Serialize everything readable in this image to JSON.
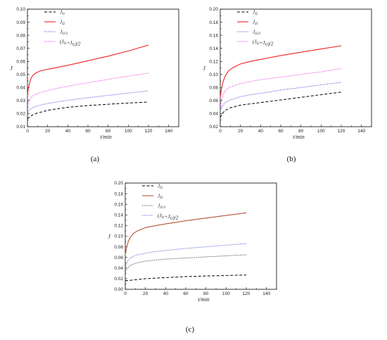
{
  "chart_data": [
    {
      "type": "line",
      "panel_label": "(a)",
      "xlabel": "t/min",
      "ylabel": "J",
      "xlim": [
        0,
        150
      ],
      "ylim": [
        0.01,
        0.1
      ],
      "xticks": [
        "0",
        "20",
        "40",
        "60",
        "80",
        "100",
        "120",
        "140"
      ],
      "yticks": [
        "0.01",
        "0.02",
        "0.03",
        "0.04",
        "0.05",
        "0.06",
        "0.07",
        "0.08",
        "0.09",
        "0.10"
      ],
      "legend_position": "top-left",
      "series": [
        {
          "name": "J_I1",
          "legend": [
            {
              "t": "J",
              "sub": "I1"
            }
          ],
          "color": "#000000",
          "style": "dash",
          "x": [
            0,
            2,
            5,
            10,
            20,
            30,
            40,
            60,
            80,
            100,
            120
          ],
          "y": [
            0.016,
            0.0175,
            0.019,
            0.0205,
            0.0225,
            0.0238,
            0.0248,
            0.0262,
            0.0272,
            0.0281,
            0.0289
          ]
        },
        {
          "name": "J_I2",
          "legend": [
            {
              "t": "J",
              "sub": "I2"
            }
          ],
          "color": "#ee2222",
          "style": "solid",
          "x": [
            0,
            1,
            3,
            5,
            8,
            12,
            20,
            30,
            40,
            60,
            80,
            100,
            120
          ],
          "y": [
            0.034,
            0.04,
            0.046,
            0.049,
            0.051,
            0.0525,
            0.054,
            0.0555,
            0.057,
            0.0605,
            0.064,
            0.068,
            0.0725
          ]
        },
        {
          "name": "J_I1/2",
          "legend": [
            {
              "t": "J",
              "sub": "I1/2"
            }
          ],
          "color": "#3333cc",
          "style": "dot",
          "x": [
            0,
            2,
            5,
            10,
            20,
            30,
            40,
            60,
            80,
            100,
            120
          ],
          "y": [
            0.021,
            0.023,
            0.0245,
            0.026,
            0.0278,
            0.029,
            0.0302,
            0.0322,
            0.034,
            0.0357,
            0.0375
          ]
        },
        {
          "name": "(J_I1+J_I2)/2",
          "legend": [
            {
              "t": "(J"
            },
            {
              "t": "",
              "sub": "I1"
            },
            {
              "t": "+J"
            },
            {
              "t": "",
              "sub": "I2"
            },
            {
              "t": ")/2"
            }
          ],
          "color": "#dd22dd",
          "style": "dot",
          "x": [
            0,
            1,
            3,
            5,
            10,
            20,
            30,
            40,
            60,
            80,
            100,
            120
          ],
          "y": [
            0.025,
            0.029,
            0.032,
            0.0335,
            0.0355,
            0.0378,
            0.0395,
            0.041,
            0.0437,
            0.0462,
            0.0487,
            0.051
          ]
        }
      ]
    },
    {
      "type": "line",
      "panel_label": "(b)",
      "xlabel": "t/min",
      "ylabel": "J",
      "xlim": [
        0,
        150
      ],
      "ylim": [
        0.02,
        0.2
      ],
      "xticks": [
        "0",
        "20",
        "40",
        "60",
        "80",
        "100",
        "120",
        "140"
      ],
      "yticks": [
        "0.02",
        "0.04",
        "0.06",
        "0.08",
        "0.10",
        "0.12",
        "0.14",
        "0.16",
        "0.18",
        "0.20"
      ],
      "legend_position": "top-left",
      "series": [
        {
          "name": "J_I2",
          "legend": [
            {
              "t": "J",
              "sub": "I2"
            }
          ],
          "color": "#000000",
          "style": "dash",
          "x": [
            0,
            2,
            5,
            10,
            20,
            30,
            40,
            60,
            80,
            100,
            120
          ],
          "y": [
            0.034,
            0.04,
            0.045,
            0.049,
            0.053,
            0.055,
            0.057,
            0.061,
            0.065,
            0.069,
            0.073
          ]
        },
        {
          "name": "J_I3",
          "legend": [
            {
              "t": "J",
              "sub": "I3"
            }
          ],
          "color": "#ee2222",
          "style": "solid",
          "x": [
            0,
            1,
            3,
            5,
            8,
            12,
            20,
            30,
            40,
            60,
            80,
            100,
            120
          ],
          "y": [
            0.065,
            0.076,
            0.09,
            0.098,
            0.105,
            0.11,
            0.116,
            0.12,
            0.123,
            0.129,
            0.134,
            0.139,
            0.144
          ]
        },
        {
          "name": "J_I2/3",
          "legend": [
            {
              "t": "J",
              "sub": "I2/3"
            }
          ],
          "color": "#3333cc",
          "style": "dot",
          "x": [
            0,
            2,
            5,
            10,
            20,
            30,
            40,
            60,
            80,
            100,
            120
          ],
          "y": [
            0.045,
            0.052,
            0.057,
            0.061,
            0.066,
            0.069,
            0.071,
            0.076,
            0.08,
            0.084,
            0.088
          ]
        },
        {
          "name": "(J_I2+J_I3)/2",
          "legend": [
            {
              "t": "(J"
            },
            {
              "t": "",
              "sub": "I2"
            },
            {
              "t": "+J"
            },
            {
              "t": "",
              "sub": "I3"
            },
            {
              "t": ")/2"
            }
          ],
          "color": "#dd22dd",
          "style": "dot",
          "x": [
            0,
            1,
            3,
            5,
            10,
            20,
            30,
            40,
            60,
            80,
            100,
            120
          ],
          "y": [
            0.05,
            0.06,
            0.07,
            0.075,
            0.081,
            0.086,
            0.089,
            0.092,
            0.096,
            0.1,
            0.104,
            0.109
          ]
        }
      ]
    },
    {
      "type": "line",
      "panel_label": "(c)",
      "xlabel": "t/min",
      "ylabel": "J",
      "xlim": [
        0,
        150
      ],
      "ylim": [
        0.0,
        0.2
      ],
      "xticks": [
        "0",
        "20",
        "40",
        "60",
        "80",
        "100",
        "120",
        "140"
      ],
      "yticks": [
        "0.00",
        "0.02",
        "0.04",
        "0.06",
        "0.08",
        "0.10",
        "0.12",
        "0.14",
        "0.16",
        "0.18",
        "0.20"
      ],
      "legend_position": "top-left",
      "series": [
        {
          "name": "J_I1",
          "legend": [
            {
              "t": "J",
              "sub": "I1"
            }
          ],
          "color": "#000000",
          "style": "dash",
          "x": [
            0,
            5,
            10,
            20,
            30,
            40,
            60,
            80,
            100,
            120
          ],
          "y": [
            0.016,
            0.017,
            0.018,
            0.02,
            0.021,
            0.022,
            0.024,
            0.025,
            0.026,
            0.027
          ]
        },
        {
          "name": "J_I3",
          "legend": [
            {
              "t": "J",
              "sub": "I3"
            }
          ],
          "color": "#b5533c",
          "style": "solid",
          "x": [
            0,
            1,
            3,
            5,
            8,
            12,
            20,
            30,
            40,
            60,
            80,
            100,
            120
          ],
          "y": [
            0.065,
            0.076,
            0.09,
            0.098,
            0.105,
            0.11,
            0.116,
            0.12,
            0.123,
            0.129,
            0.134,
            0.139,
            0.144
          ]
        },
        {
          "name": "J_I1/3",
          "legend": [
            {
              "t": "J",
              "sub": "I1/3"
            }
          ],
          "color": "#222222",
          "style": "dot",
          "x": [
            0,
            2,
            5,
            10,
            20,
            30,
            40,
            60,
            80,
            100,
            120
          ],
          "y": [
            0.033,
            0.04,
            0.045,
            0.049,
            0.053,
            0.055,
            0.057,
            0.059,
            0.061,
            0.063,
            0.065
          ]
        },
        {
          "name": "(J_I1+J_I3)/2",
          "legend": [
            {
              "t": "(J"
            },
            {
              "t": "",
              "sub": "I1"
            },
            {
              "t": "+J"
            },
            {
              "t": "",
              "sub": "I3"
            },
            {
              "t": ")/2"
            }
          ],
          "color": "#3344cc",
          "style": "dot",
          "x": [
            0,
            1,
            3,
            5,
            10,
            20,
            30,
            40,
            60,
            80,
            100,
            120
          ],
          "y": [
            0.04,
            0.047,
            0.055,
            0.059,
            0.064,
            0.068,
            0.071,
            0.073,
            0.077,
            0.08,
            0.083,
            0.086
          ]
        }
      ]
    }
  ]
}
